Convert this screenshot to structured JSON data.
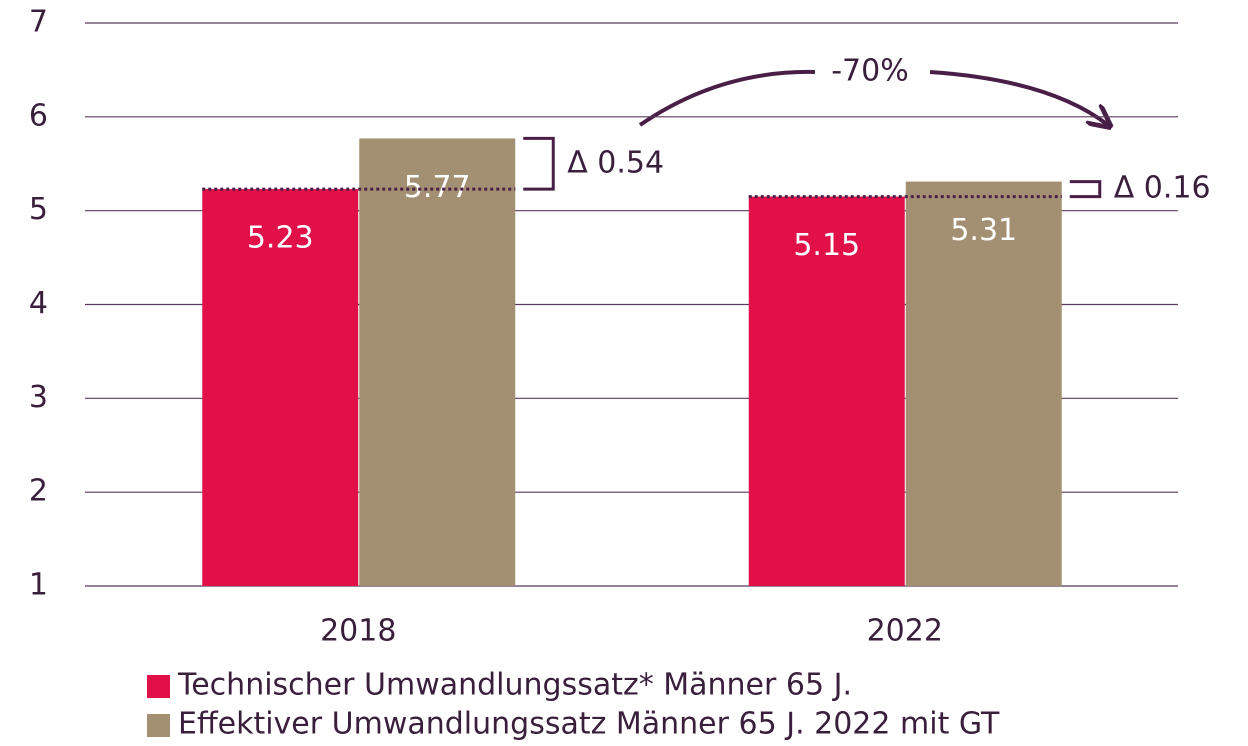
{
  "chart_data": {
    "type": "bar",
    "categories": [
      "2018",
      "2022"
    ],
    "series": [
      {
        "name": "Technischer Umwandlungssatz* Männer 65 J.",
        "color": "#e21048",
        "values": [
          5.23,
          5.15
        ]
      },
      {
        "name": "Effektiver Umwandlungssatz Männer 65 J. 2022 mit GT",
        "color": "#a39072",
        "values": [
          5.77,
          5.31
        ]
      }
    ],
    "ylim": [
      1,
      7
    ],
    "yticks": [
      1,
      2,
      3,
      4,
      5,
      6,
      7
    ],
    "grid": true,
    "annotations": [
      "Δ 0.54",
      "Δ 0.16",
      "-70%"
    ]
  }
}
